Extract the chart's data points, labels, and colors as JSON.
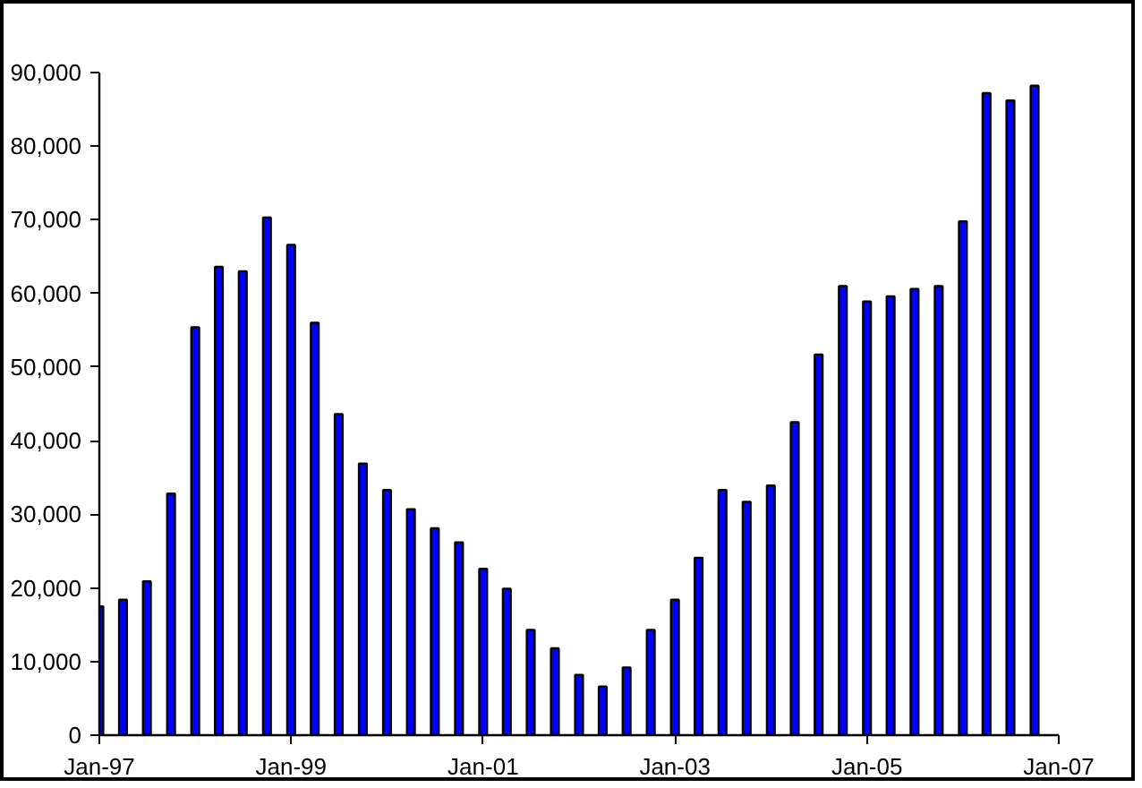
{
  "chart_data": {
    "type": "bar",
    "x": [
      "1997-01",
      "1997-04",
      "1997-07",
      "1997-10",
      "1998-01",
      "1998-04",
      "1998-07",
      "1998-10",
      "1999-01",
      "1999-04",
      "1999-07",
      "1999-10",
      "2000-01",
      "2000-04",
      "2000-07",
      "2000-10",
      "2001-01",
      "2001-04",
      "2001-07",
      "2001-10",
      "2002-01",
      "2002-04",
      "2002-07",
      "2002-10",
      "2003-01",
      "2003-04",
      "2003-07",
      "2003-10",
      "2004-01",
      "2004-04",
      "2004-07",
      "2004-10",
      "2005-01",
      "2005-04",
      "2005-07",
      "2005-10",
      "2006-01",
      "2006-04",
      "2006-07",
      "2006-10"
    ],
    "series": [
      {
        "color": "#0000ff",
        "values": [
          17500,
          18400,
          20900,
          32800,
          55400,
          63600,
          63000,
          70300,
          66600,
          56000,
          43600,
          36900,
          33300,
          30700,
          28100,
          26200,
          22600,
          19900,
          14300,
          11800,
          8200,
          6600,
          9200,
          14300,
          18400,
          24100,
          33300,
          31700,
          33900,
          42500,
          51700,
          61000,
          58900,
          59600,
          60600,
          61000,
          69800,
          87200,
          86200,
          88200
        ]
      }
    ],
    "xlim": [
      "1997-01",
      "2007-01"
    ],
    "xticks": [
      {
        "value": "1997-01",
        "label": "Jan-97"
      },
      {
        "value": "1999-01",
        "label": "Jan-99"
      },
      {
        "value": "2001-01",
        "label": "Jan-01"
      },
      {
        "value": "2003-01",
        "label": "Jan-03"
      },
      {
        "value": "2005-01",
        "label": "Jan-05"
      },
      {
        "value": "2007-01",
        "label": "Jan-07"
      }
    ],
    "ylim": [
      0,
      90000
    ],
    "yticks": [
      {
        "value": 0,
        "label": "0"
      },
      {
        "value": 10000,
        "label": "10,000"
      },
      {
        "value": 20000,
        "label": "20,000"
      },
      {
        "value": 30000,
        "label": "30,000"
      },
      {
        "value": 40000,
        "label": "40,000"
      },
      {
        "value": 50000,
        "label": "50,000"
      },
      {
        "value": 60000,
        "label": "60,000"
      },
      {
        "value": 70000,
        "label": "70,000"
      },
      {
        "value": 80000,
        "label": "80,000"
      },
      {
        "value": 90000,
        "label": "90,000"
      }
    ],
    "grid": false
  }
}
